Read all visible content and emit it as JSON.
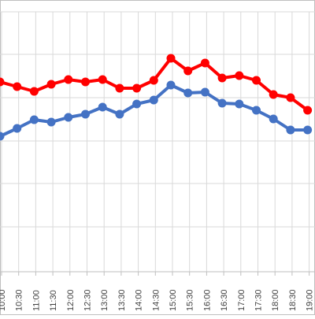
{
  "chart_data": {
    "type": "line",
    "categories": [
      "10:00",
      "10:30",
      "11:00",
      "11:30",
      "12:00",
      "12:30",
      "13:00",
      "13:30",
      "14:00",
      "14:30",
      "15:00",
      "15:30",
      "16:00",
      "16:30",
      "17:00",
      "17:30",
      "18:00",
      "18:30",
      "19:00"
    ],
    "series": [
      {
        "color": "#ff0000",
        "values": [
          104,
          110,
          116,
          107,
          101,
          104,
          101,
          112,
          112,
          102,
          74,
          90,
          80,
          99,
          96,
          102,
          120,
          124,
          140
        ]
      },
      {
        "color": "#4472c4",
        "values": [
          173,
          163,
          152,
          155,
          149,
          145,
          136,
          145,
          132,
          127,
          108,
          118,
          117,
          131,
          132,
          140,
          151,
          165,
          165
        ]
      }
    ],
    "yrange_note": "no y tick labels visible",
    "grid": true,
    "legend": "none"
  }
}
